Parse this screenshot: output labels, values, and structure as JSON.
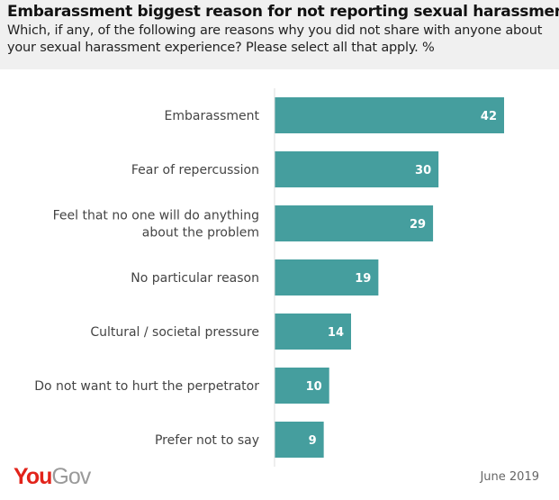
{
  "header": {
    "title": "Embarassment biggest reason for not reporting sexual harassment",
    "subtitle": "Which, if any, of the following are reasons why you did not share with anyone about your sexual harassment experience? Please select all that apply. %"
  },
  "footer": {
    "logo": "YouGov",
    "logo_parts": [
      "You",
      "Gov"
    ],
    "date": "June 2019"
  },
  "chart_data": {
    "type": "bar",
    "orientation": "horizontal",
    "title": "Embarassment biggest reason for not reporting sexual harassment",
    "categories": [
      "Embarassment",
      "Fear of repercussion",
      "Feel that no one will do anything about the problem",
      "No particular reason",
      "Cultural / societal pressure",
      "Do not want to hurt the perpetrator",
      "Prefer not to say"
    ],
    "category_lines": [
      [
        "Embarassment"
      ],
      [
        "Fear of repercussion"
      ],
      [
        "Feel that no one will do anything",
        "about the problem"
      ],
      [
        "No particular reason"
      ],
      [
        "Cultural / societal pressure"
      ],
      [
        "Do not want to hurt the perpetrator"
      ],
      [
        "Prefer not to say"
      ]
    ],
    "values": [
      42,
      30,
      29,
      19,
      14,
      10,
      9
    ],
    "xlim": [
      0,
      42
    ],
    "grid": false,
    "legend": "none",
    "bar_color": "#459e9e"
  }
}
